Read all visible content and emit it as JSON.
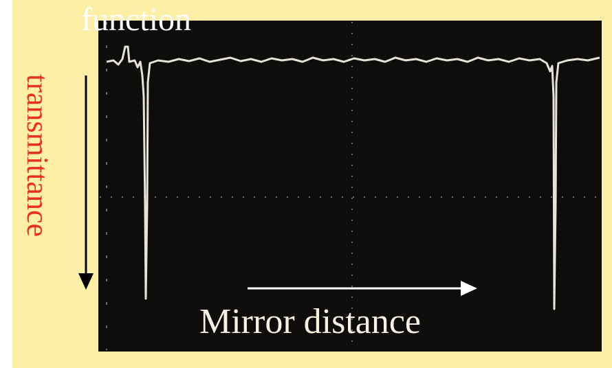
{
  "header": {
    "title": "function"
  },
  "labels": {
    "y_axis": "transmittance",
    "x_axis": "Mirror distance"
  }
}
